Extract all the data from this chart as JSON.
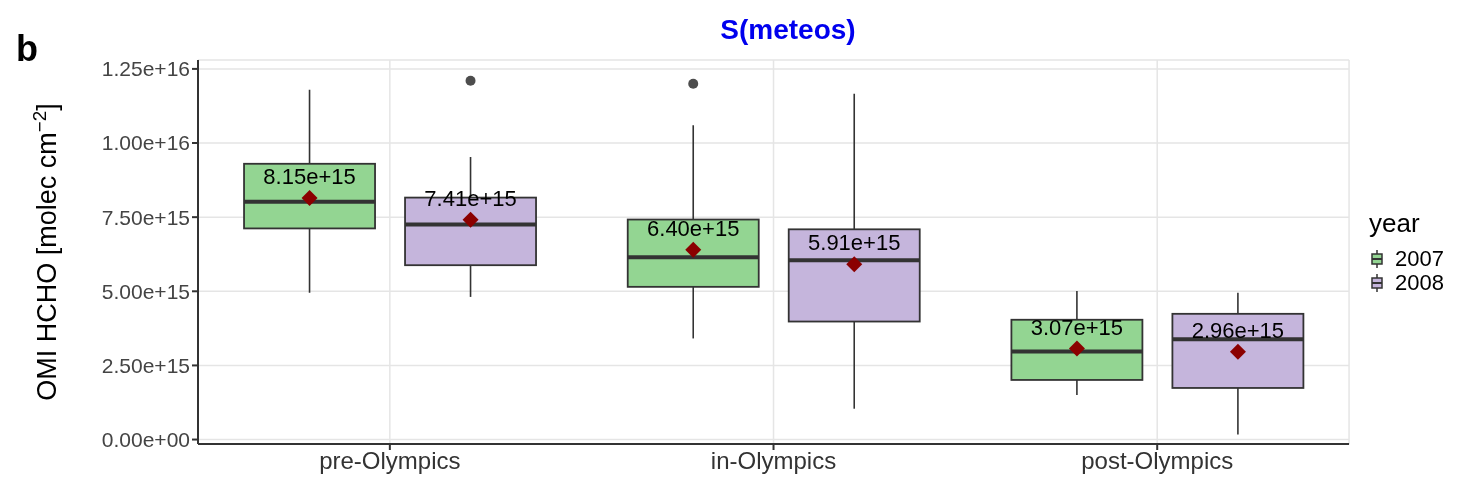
{
  "chart_data": {
    "type": "box",
    "title": "S(meteos)",
    "ylabel": "OMI HCHO [molec cm$^{−2}$]",
    "legend_title": "year",
    "categories": [
      "pre-Olympics",
      "in-Olympics",
      "post-Olympics"
    ],
    "series": [
      {
        "name": "2007",
        "color": "#93d592",
        "boxes": [
          {
            "low": 4950000000000000.0,
            "q1": 7120000000000000.0,
            "median": 8020000000000000.0,
            "q3": 9300000000000000.0,
            "high": 1.18e+16,
            "mean": 8150000000000000.0
          },
          {
            "low": 3410000000000000.0,
            "q1": 5150000000000000.0,
            "median": 6150000000000000.0,
            "q3": 7420000000000000.0,
            "high": 1.06e+16,
            "mean": 6400000000000000.0,
            "outliers": [
              1.2e+16
            ]
          },
          {
            "low": 1500000000000000.0,
            "q1": 2010000000000000.0,
            "median": 2970000000000000.0,
            "q3": 4040000000000000.0,
            "high": 5010000000000000.0,
            "mean": 3070000000000000.0
          }
        ]
      },
      {
        "name": "2008",
        "color": "#c5b5dc",
        "boxes": [
          {
            "low": 4810000000000000.0,
            "q1": 5880000000000000.0,
            "median": 7250000000000000.0,
            "q3": 8160000000000000.0,
            "high": 9530000000000000.0,
            "mean": 7410000000000000.0,
            "outliers": [
              1.21e+16
            ]
          },
          {
            "low": 1040000000000000.0,
            "q1": 3980000000000000.0,
            "median": 6050000000000000.0,
            "q3": 7090000000000000.0,
            "high": 1.166e+16,
            "mean": 5910000000000000.0
          },
          {
            "low": 170000000000000.0,
            "q1": 1740000000000000.0,
            "median": 3380000000000000.0,
            "q3": 4240000000000000.0,
            "high": 4950000000000000.0,
            "mean": 2960000000000000.0
          }
        ]
      }
    ],
    "ylim": [
      -150000000000000.0,
      1.28e+16
    ],
    "yticks": [
      {
        "value": 0,
        "label": "0.00e+00"
      },
      {
        "value": 2500000000000000.0,
        "label": "2.50e+15"
      },
      {
        "value": 5000000000000000.0,
        "label": "5.00e+15"
      },
      {
        "value": 7500000000000000.0,
        "label": "7.50e+15"
      },
      {
        "value": 1e+16,
        "label": "1.00e+16"
      },
      {
        "value": 1.25e+16,
        "label": "1.25e+16"
      }
    ],
    "grid": true,
    "legend": "right",
    "annotations": [
      "b",
      "8.15e+15",
      "7.41e+15",
      "6.40e+15",
      "5.91e+15",
      "3.07e+15",
      "2.96e+15"
    ]
  }
}
